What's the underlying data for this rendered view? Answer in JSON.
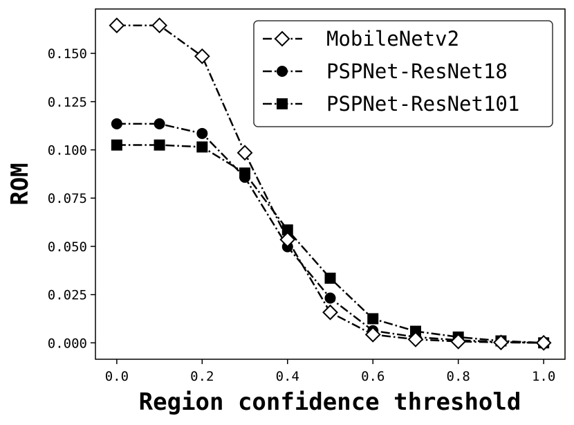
{
  "chart_data": {
    "type": "line",
    "title": "",
    "xlabel": "Region confidence threshold",
    "ylabel": "ROM",
    "xlim": [
      -0.05,
      1.05
    ],
    "ylim": [
      -0.0085,
      0.173
    ],
    "x": [
      0.0,
      0.1,
      0.2,
      0.3,
      0.4,
      0.5,
      0.6,
      0.7,
      0.8,
      0.9,
      1.0
    ],
    "x_ticks": [
      0.0,
      0.2,
      0.4,
      0.6,
      0.8,
      1.0
    ],
    "x_tick_labels": [
      "0.0",
      "0.2",
      "0.4",
      "0.6",
      "0.8",
      "1.0"
    ],
    "y_ticks": [
      0.0,
      0.025,
      0.05,
      0.075,
      0.1,
      0.125,
      0.15
    ],
    "y_tick_labels": [
      "0.000",
      "0.025",
      "0.050",
      "0.075",
      "0.100",
      "0.125",
      "0.150"
    ],
    "grid": false,
    "legend_position": "top-right",
    "series": [
      {
        "name": "MobileNetv2",
        "marker": "diamond-open",
        "values": [
          0.1645,
          0.1645,
          0.1485,
          0.0985,
          0.0535,
          0.0158,
          0.0043,
          0.0018,
          0.0007,
          0.0002,
          0.0
        ]
      },
      {
        "name": "PSPNet-ResNet18",
        "marker": "circle",
        "values": [
          0.1135,
          0.1135,
          0.1085,
          0.0858,
          0.0498,
          0.0232,
          0.0063,
          0.003,
          0.0014,
          0.0004,
          0.0
        ]
      },
      {
        "name": "PSPNet-ResNet101",
        "marker": "square",
        "values": [
          0.1025,
          0.1025,
          0.1015,
          0.088,
          0.0585,
          0.0335,
          0.0125,
          0.006,
          0.003,
          0.001,
          0.0
        ]
      }
    ],
    "colors": {
      "line": "#000000",
      "marker_fill": "#000000",
      "open_fill": "#ffffff"
    }
  }
}
